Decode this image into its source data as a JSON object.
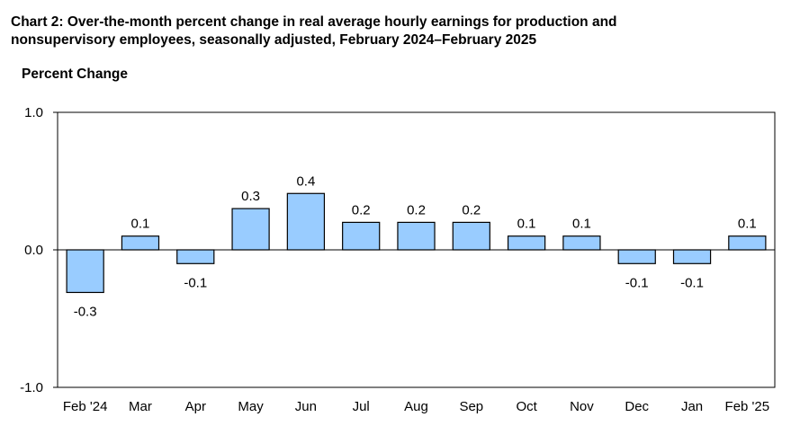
{
  "chart_data": {
    "type": "bar",
    "title_line1": "Chart 2: Over-the-month percent change in real average hourly earnings for production and",
    "title_line2": "nonsupervisory employees, seasonally adjusted, February 2024–February 2025",
    "ylabel": "Percent Change",
    "xlabel": "",
    "ylim": [
      -1.0,
      1.0
    ],
    "yticks": [
      "1.0",
      "0.0",
      "-1.0"
    ],
    "ytick_values": [
      1.0,
      0.0,
      -1.0
    ],
    "categories": [
      "Feb '24",
      "Mar",
      "Apr",
      "May",
      "Jun",
      "Jul",
      "Aug",
      "Sep",
      "Oct",
      "Nov",
      "Dec",
      "Jan",
      "Feb '25"
    ],
    "values": [
      -0.31,
      0.1,
      -0.1,
      0.3,
      0.41,
      0.2,
      0.2,
      0.2,
      0.1,
      0.1,
      -0.1,
      -0.1,
      0.1
    ],
    "data_labels": [
      "-0.3",
      "0.1",
      "-0.1",
      "0.3",
      "0.4",
      "0.2",
      "0.2",
      "0.2",
      "0.1",
      "0.1",
      "-0.1",
      "-0.1",
      "0.1"
    ],
    "grid": false,
    "legend": "none",
    "bar_color": "#99ccff",
    "bar_stroke": "#000000"
  }
}
